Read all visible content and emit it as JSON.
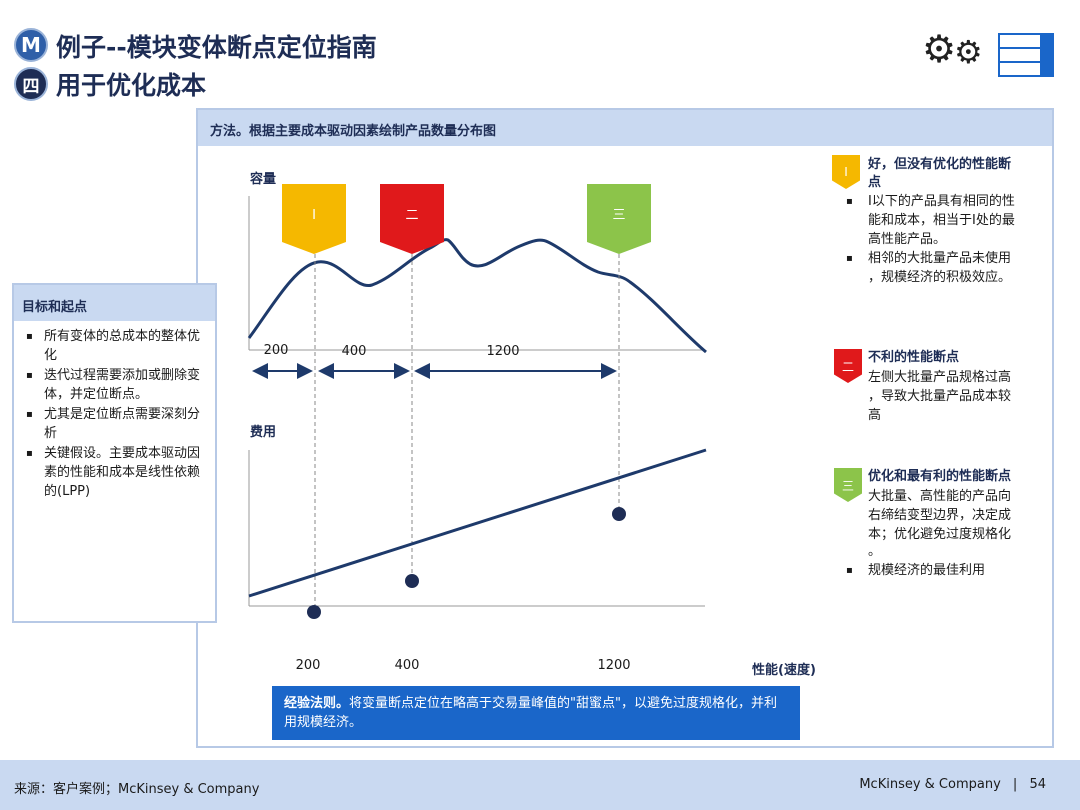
{
  "header": {
    "badge_m": "M",
    "badge_four": "四",
    "title_line1": "例子--模块变体断点定位指南",
    "title_line2": "用于优化成本"
  },
  "panel": {
    "heading": "方法。根据主要成本驱动因素绘制产品数量分布图"
  },
  "left_box": {
    "heading": "目标和起点",
    "bullets": [
      "所有变体的总成本的整体优化",
      "迭代过程需要添加或删除变体，并定位断点。",
      "尤其是定位断点需要深刻分析",
      "关键假设。主要成本驱动因素的性能和成本是线性依赖的(LPP)"
    ]
  },
  "chart_data": [
    {
      "type": "line",
      "ylabel": "容量",
      "markers": [
        {
          "label": "I",
          "color": "#f5b800"
        },
        {
          "label": "二",
          "color": "#e0191b"
        },
        {
          "label": "三",
          "color": "#8cc44a"
        }
      ],
      "intervals": [
        "200",
        "400",
        "1200"
      ]
    },
    {
      "type": "line",
      "ylabel": "费用",
      "xlabel": "性能(速度)",
      "x_ticks": [
        "200",
        "400",
        "1200"
      ]
    }
  ],
  "legend": {
    "item1": {
      "tag": "I",
      "color": "#f5b800",
      "title_a": "好，但没有优化的性能断",
      "title_b": "点",
      "bullet1_a": "I以下的产品具有相同的性",
      "bullet1_b": "能和成本，相当于I处的最",
      "bullet1_c": "高性能产品。",
      "bullet2_a": "相邻的大批量产品未使用",
      "bullet2_b": "，规模经济的积极效应。"
    },
    "item2": {
      "tag": "二",
      "color": "#e0191b",
      "title": "不利的性能断点",
      "text_a": "左侧大批量产品规格过高",
      "text_b": "，导致大批量产品成本较",
      "text_c": "高"
    },
    "item3": {
      "tag": "三",
      "color": "#8cc44a",
      "title": "优化和最有利的性能断点",
      "text_a": "大批量、高性能的产品向",
      "text_b": "右缔结变型边界，决定成",
      "text_c": "本；优化避免过度规格化",
      "text_d": "。",
      "bullet": "规模经济的最佳利用"
    }
  },
  "rule": {
    "bold": "经验法则。",
    "text": "将变量断点定位在略高于交易量峰值的\"甜蜜点\"，以避免过度规格化，并利用规模经济。"
  },
  "footer": {
    "source": "来源：客户案例；McKinsey & Company",
    "brand": "McKinsey & Company",
    "separator": "|",
    "page": "54"
  }
}
